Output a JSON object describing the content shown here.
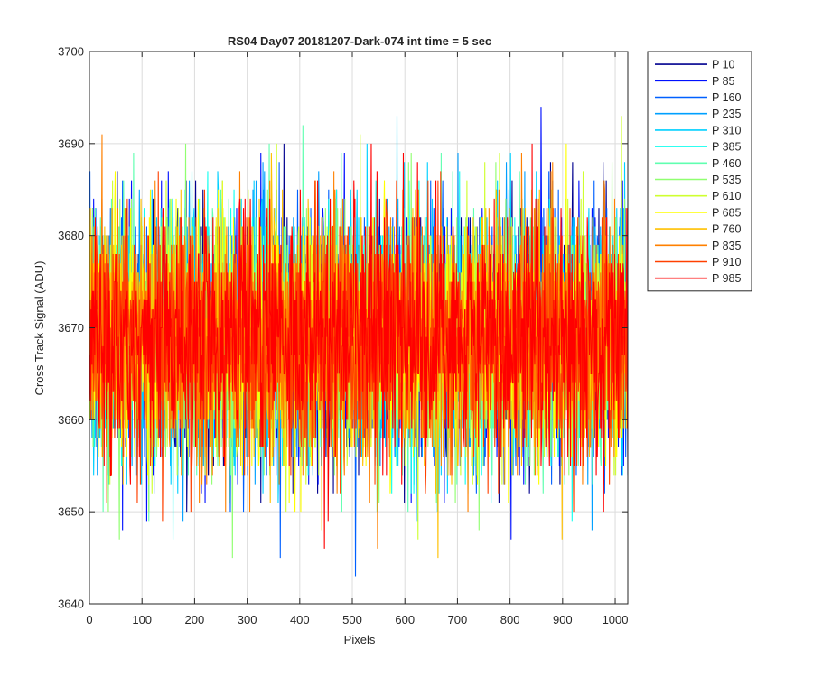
{
  "chart_data": {
    "type": "line",
    "title": "RS04 Day07 20181207-Dark-074 int time = 5 sec",
    "xlabel": "Pixels",
    "ylabel": "Cross Track Signal (ADU)",
    "xlim": [
      0,
      1024
    ],
    "ylim": [
      3640,
      3700
    ],
    "xticks": [
      0,
      100,
      200,
      300,
      400,
      500,
      600,
      700,
      800,
      900,
      1000
    ],
    "yticks": [
      3640,
      3650,
      3660,
      3670,
      3680,
      3690,
      3700
    ],
    "grid": true,
    "legend_location": "outside-right-top",
    "series_summary": {
      "x_range": [
        1,
        1024
      ],
      "mean_signal": 3669,
      "typical_range": [
        3652,
        3686
      ],
      "min_observed": 3640,
      "max_observed": 3699
    },
    "series": [
      {
        "name": "P 10",
        "color": "#00008f"
      },
      {
        "name": "P 85",
        "color": "#0010ff"
      },
      {
        "name": "P 160",
        "color": "#0060ff"
      },
      {
        "name": "P 235",
        "color": "#00a0ff"
      },
      {
        "name": "P 310",
        "color": "#00d0ff"
      },
      {
        "name": "P 385",
        "color": "#10ffef"
      },
      {
        "name": "P 460",
        "color": "#60ffb0"
      },
      {
        "name": "P 535",
        "color": "#90ff70"
      },
      {
        "name": "P 610",
        "color": "#cfff30"
      },
      {
        "name": "P 685",
        "color": "#ffff00"
      },
      {
        "name": "P 760",
        "color": "#ffc000"
      },
      {
        "name": "P 835",
        "color": "#ff8000"
      },
      {
        "name": "P 910",
        "color": "#ff4000"
      },
      {
        "name": "P 985",
        "color": "#ff0000"
      }
    ]
  }
}
